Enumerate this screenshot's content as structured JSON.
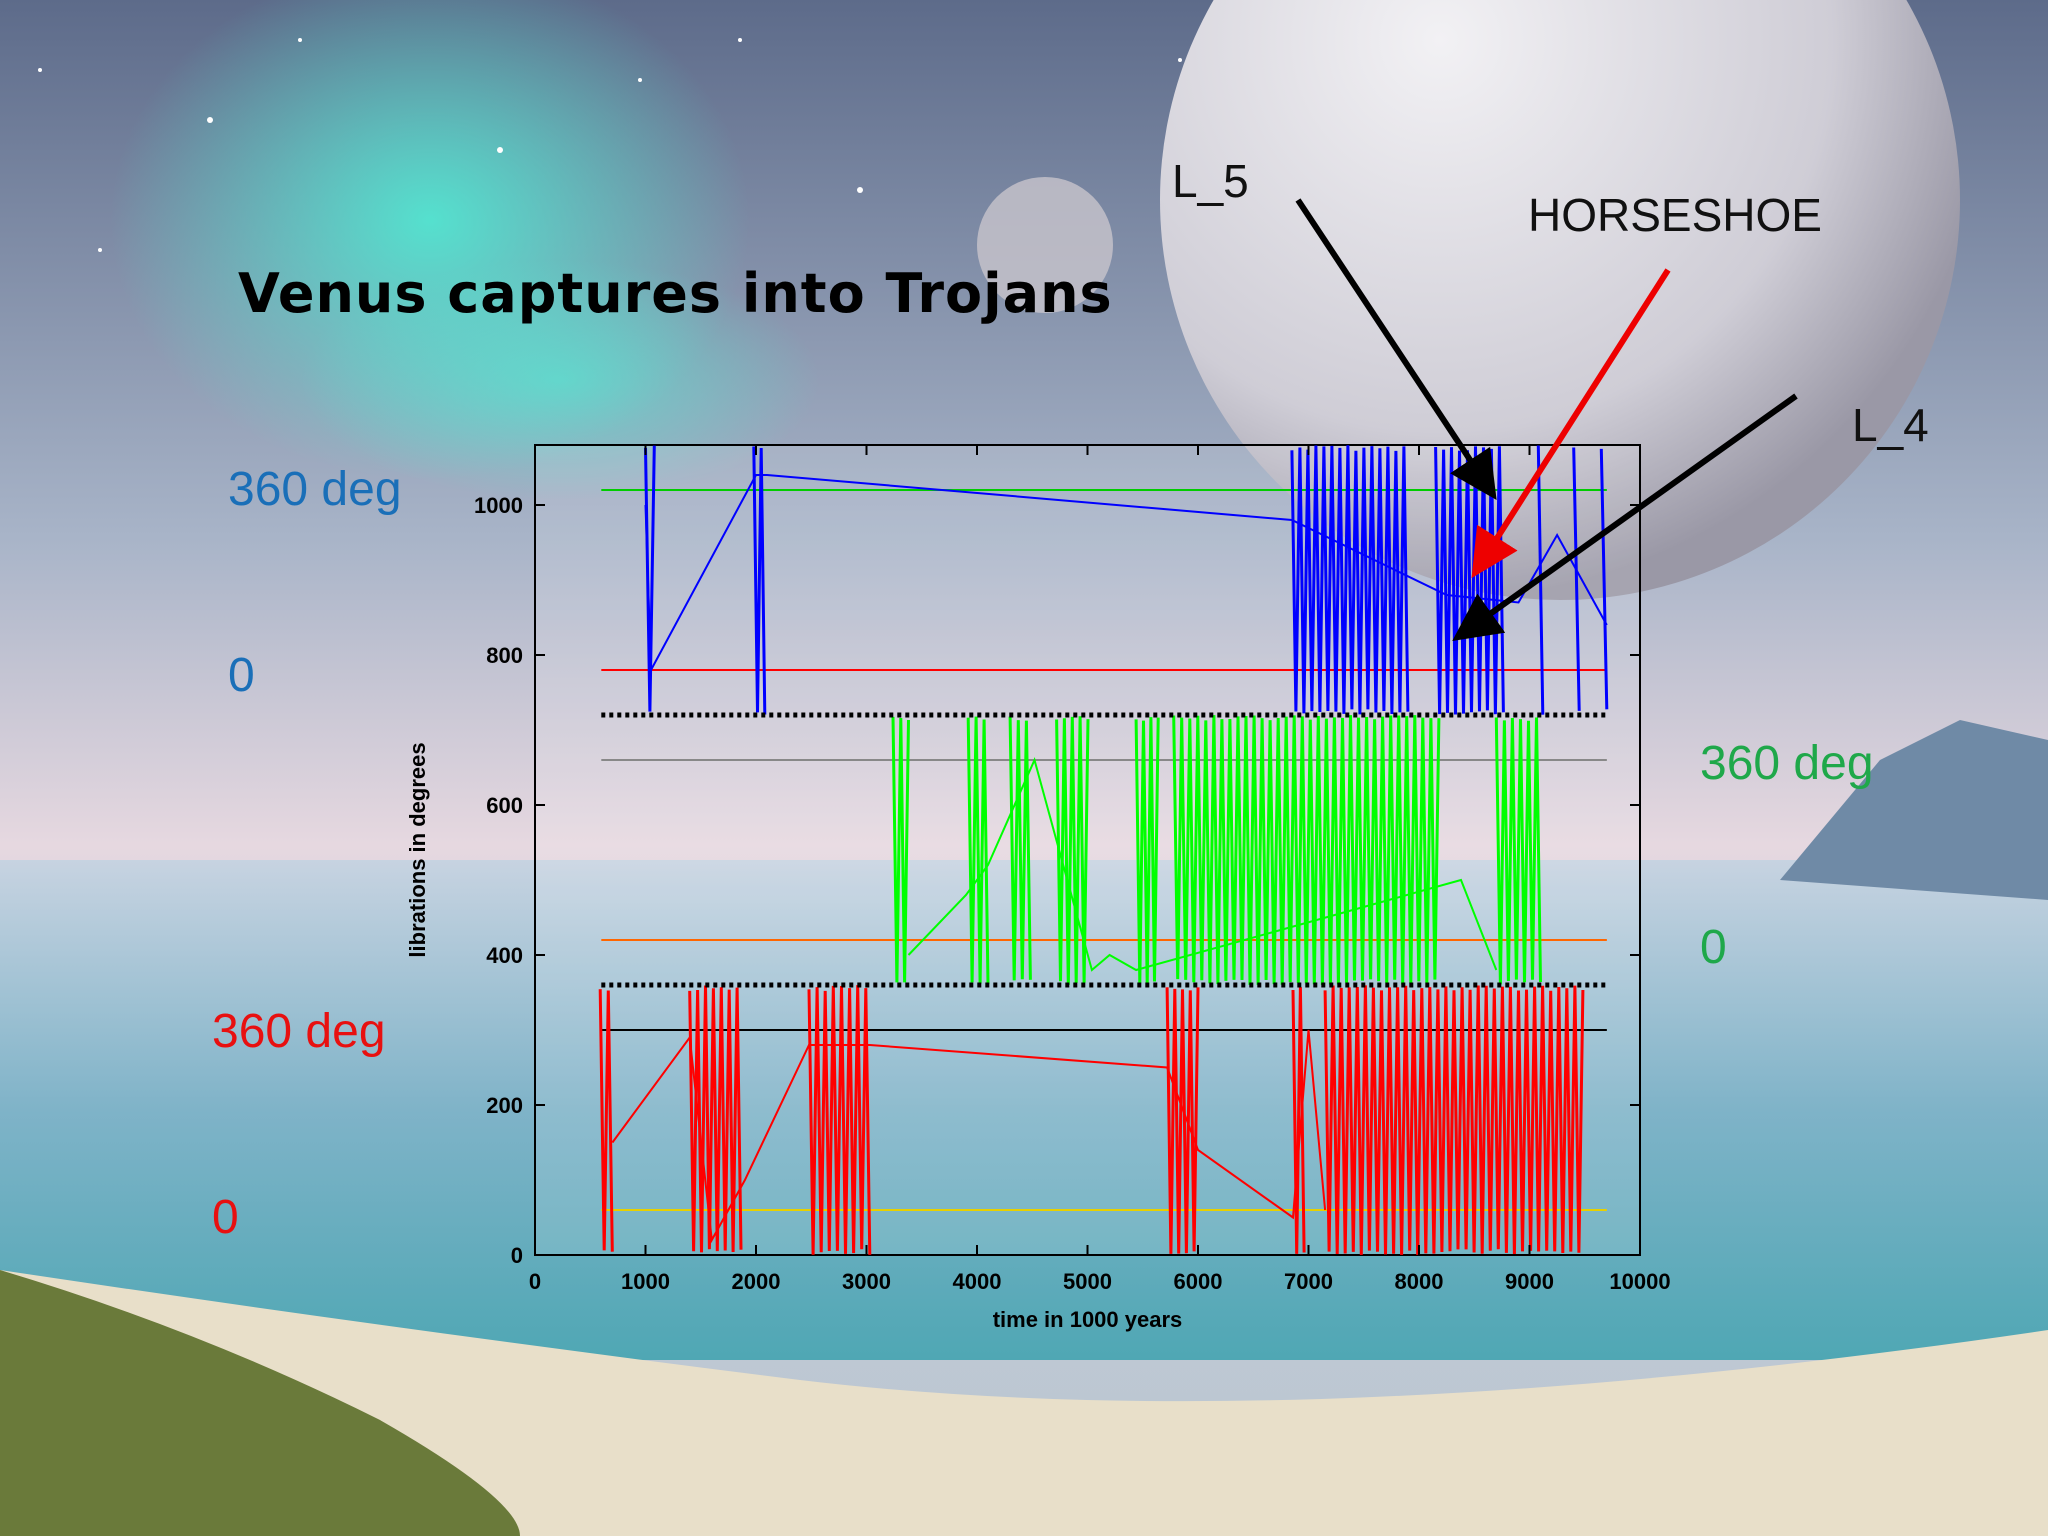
{
  "slide": {
    "title": "Venus captures into Trojans",
    "colors": {
      "blue": "#1a6fb8",
      "green": "#1fa84a",
      "red": "#e81010"
    },
    "left_labels": {
      "blue_top": "360 deg",
      "blue_bottom": "0",
      "red_top": "360 deg",
      "red_bottom": "0"
    },
    "right_labels": {
      "green_top": "360 deg",
      "green_bottom": "0"
    },
    "annotations": {
      "l5": "L_5",
      "horseshoe": "HORSESHOE",
      "l4": "L_4"
    }
  },
  "chart_data": {
    "type": "line",
    "title": "",
    "xlabel": "time in 1000 years",
    "ylabel": "librations in degrees",
    "xlim": [
      0,
      10000
    ],
    "ylim": [
      0,
      1080
    ],
    "xticks": [
      "0",
      "1000",
      "2000",
      "3000",
      "4000",
      "5000",
      "6000",
      "7000",
      "8000",
      "9000",
      "10000"
    ],
    "yticks": [
      "0",
      "200",
      "400",
      "600",
      "800",
      "1000"
    ],
    "separators": [
      360,
      720
    ],
    "reference_lines": [
      {
        "y": 1020,
        "color": "#00cc00"
      },
      {
        "y": 780,
        "color": "#ff0000"
      },
      {
        "y": 660,
        "color": "#888888"
      },
      {
        "y": 420,
        "color": "#ff6600"
      },
      {
        "y": 300,
        "color": "#000000"
      },
      {
        "y": 60,
        "color": "#e8d000"
      }
    ],
    "series": [
      {
        "color": "#0000ff",
        "band": [
          720,
          1080
        ],
        "segments": [
          [
            1000,
            1080
          ],
          [
            1980,
            2080
          ],
          [
            6850,
            7900
          ],
          [
            8150,
            8800
          ],
          [
            9080,
            9120
          ],
          [
            9400,
            9450
          ],
          [
            9650,
            9700
          ]
        ],
        "points": [
          [
            1000,
            1000
          ],
          [
            1050,
            780
          ],
          [
            2000,
            1040
          ],
          [
            2100,
            1040
          ],
          [
            6850,
            980
          ],
          [
            8250,
            880
          ],
          [
            8900,
            870
          ],
          [
            9250,
            960
          ],
          [
            9700,
            840
          ]
        ]
      },
      {
        "color": "#00ff00",
        "band": [
          360,
          720
        ],
        "segments": [
          [
            3240,
            3380
          ],
          [
            3920,
            4100
          ],
          [
            4300,
            4520
          ],
          [
            4720,
            5040
          ],
          [
            5440,
            5640
          ],
          [
            5780,
            8180
          ],
          [
            8700,
            9100
          ]
        ],
        "points": [
          [
            3380,
            400
          ],
          [
            3900,
            480
          ],
          [
            4100,
            520
          ],
          [
            4520,
            660
          ],
          [
            5040,
            380
          ],
          [
            5200,
            400
          ],
          [
            5440,
            380
          ],
          [
            8380,
            500
          ],
          [
            8700,
            380
          ]
        ]
      },
      {
        "color": "#ff0000",
        "band": [
          0,
          360
        ],
        "segments": [
          [
            590,
            700
          ],
          [
            1400,
            1900
          ],
          [
            2480,
            3030
          ],
          [
            5720,
            6000
          ],
          [
            6860,
            6960
          ],
          [
            7150,
            9520
          ]
        ],
        "points": [
          [
            700,
            150
          ],
          [
            1400,
            290
          ],
          [
            1600,
            20
          ],
          [
            1900,
            100
          ],
          [
            2480,
            280
          ],
          [
            3030,
            280
          ],
          [
            5720,
            250
          ],
          [
            6000,
            140
          ],
          [
            6860,
            50
          ],
          [
            7000,
            300
          ],
          [
            7150,
            60
          ]
        ]
      }
    ]
  }
}
